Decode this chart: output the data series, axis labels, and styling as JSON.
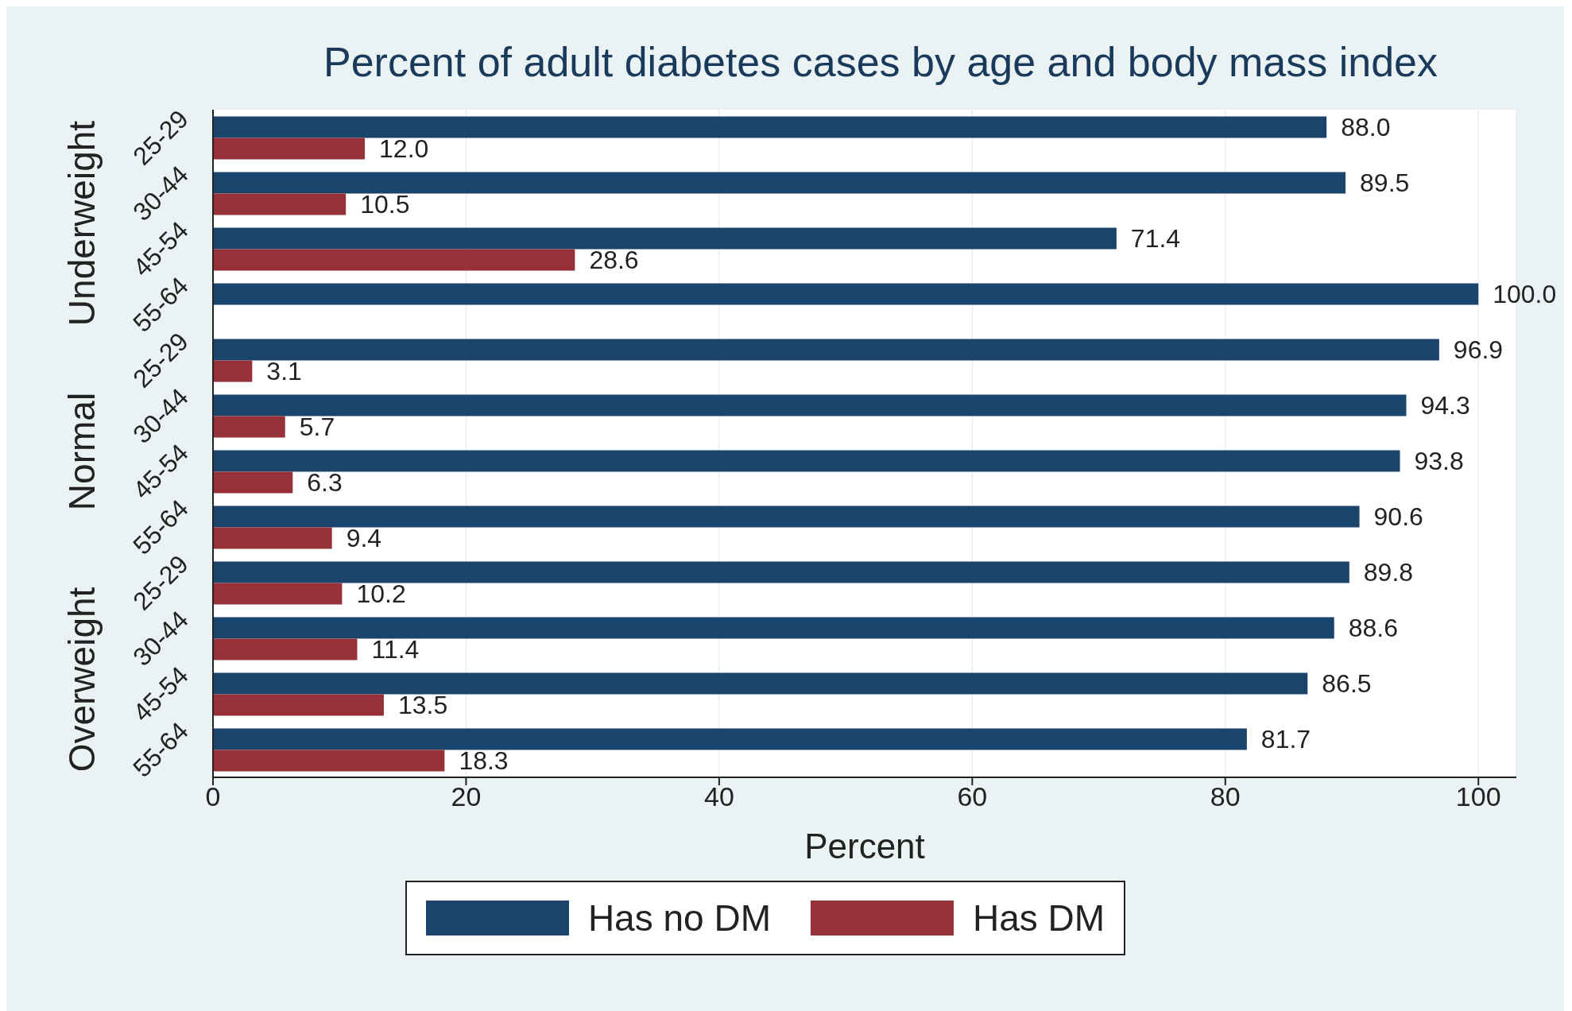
{
  "chart_data": {
    "type": "bar",
    "orientation": "horizontal",
    "title": "Percent of adult diabetes cases by age and body mass index",
    "xlabel": "Percent",
    "categories": [
      "25-29",
      "30-44",
      "45-54",
      "55-64",
      "25-29",
      "30-44",
      "45-54",
      "55-64",
      "25-29",
      "30-44",
      "45-54",
      "55-64"
    ],
    "series": [
      {
        "name": "Has no DM",
        "color": "#1a446c",
        "values": [
          88.0,
          89.5,
          71.4,
          100.0,
          96.9,
          94.3,
          93.8,
          90.6,
          89.8,
          88.6,
          86.5,
          81.7
        ],
        "value_labels": [
          "88.0",
          "89.5",
          "71.4",
          "100.0",
          "96.9",
          "94.3",
          "93.8",
          "90.6",
          "89.8",
          "88.6",
          "86.5",
          "81.7"
        ]
      },
      {
        "name": "Has DM",
        "color": "#963039",
        "values": [
          12.0,
          10.5,
          28.6,
          null,
          3.1,
          5.7,
          6.3,
          9.4,
          10.2,
          11.4,
          13.5,
          18.3
        ],
        "value_labels": [
          "12.0",
          "10.5",
          "28.6",
          null,
          "3.1",
          "5.7",
          "6.3",
          "9.4",
          "10.2",
          "11.4",
          "13.5",
          "18.3"
        ]
      }
    ],
    "annotations": [
      "Underweight",
      "Normal",
      "Overweight"
    ],
    "xlim": [
      0,
      103
    ],
    "xticks": [
      0,
      20,
      40,
      60,
      80,
      100
    ],
    "grid": "x",
    "legend": "bottom"
  }
}
